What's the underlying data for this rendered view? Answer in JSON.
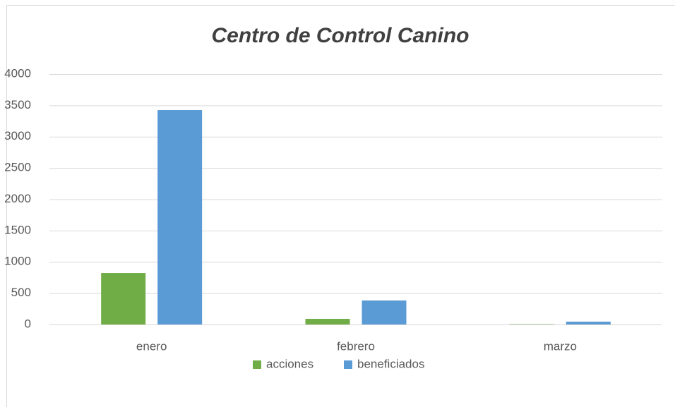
{
  "chart_data": {
    "type": "bar",
    "title": "Centro de Control Canino",
    "categories": [
      "enero",
      "febrero",
      "marzo"
    ],
    "series": [
      {
        "name": "acciones",
        "color": "#70ad47",
        "values": [
          822,
          90,
          5
        ]
      },
      {
        "name": "beneficiados",
        "color": "#5b9bd5",
        "values": [
          3425,
          383,
          45
        ]
      }
    ],
    "ylim": [
      0,
      4000
    ],
    "yticks": [
      0,
      500,
      1000,
      1500,
      2000,
      2500,
      3000,
      3500,
      4000
    ],
    "grid": true,
    "legend": "bottom"
  }
}
